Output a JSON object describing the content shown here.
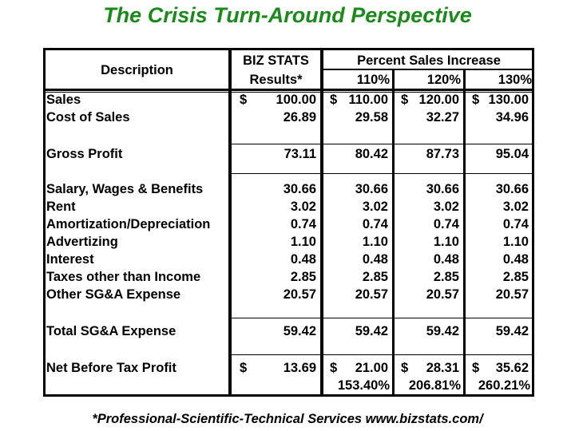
{
  "title": "The Crisis Turn-Around Perspective",
  "header": {
    "description": "Description",
    "bizstats_line1": "BIZ STATS",
    "bizstats_line2": "Results*",
    "percent_group": "Percent Sales Increase",
    "pct": [
      "110%",
      "120%",
      "130%"
    ]
  },
  "rows": [
    {
      "label": "Sales",
      "dollar": true,
      "values": [
        "100.00",
        "110.00",
        "120.00",
        "130.00"
      ]
    },
    {
      "label": "Cost of Sales",
      "dollar": false,
      "values": [
        "26.89",
        "29.58",
        "32.27",
        "34.96"
      ]
    },
    {
      "label": "Gross Profit",
      "dollar": false,
      "values": [
        "73.11",
        "80.42",
        "87.73",
        "95.04"
      ]
    },
    {
      "label": "Salary, Wages & Benefits",
      "dollar": false,
      "values": [
        "30.66",
        "30.66",
        "30.66",
        "30.66"
      ]
    },
    {
      "label": "Rent",
      "dollar": false,
      "values": [
        "3.02",
        "3.02",
        "3.02",
        "3.02"
      ]
    },
    {
      "label": "Amortization/Depreciation",
      "dollar": false,
      "values": [
        "0.74",
        "0.74",
        "0.74",
        "0.74"
      ]
    },
    {
      "label": "Advertizing",
      "dollar": false,
      "values": [
        "1.10",
        "1.10",
        "1.10",
        "1.10"
      ]
    },
    {
      "label": "Interest",
      "dollar": false,
      "values": [
        "0.48",
        "0.48",
        "0.48",
        "0.48"
      ]
    },
    {
      "label": "Taxes other than Income",
      "dollar": false,
      "values": [
        "2.85",
        "2.85",
        "2.85",
        "2.85"
      ]
    },
    {
      "label": "Other SG&A Expense",
      "dollar": false,
      "values": [
        "20.57",
        "20.57",
        "20.57",
        "20.57"
      ]
    },
    {
      "label": "Total SG&A Expense",
      "dollar": false,
      "values": [
        "59.42",
        "59.42",
        "59.42",
        "59.42"
      ]
    },
    {
      "label": "Net Before Tax Profit",
      "dollar": true,
      "values": [
        "13.69",
        "21.00",
        "28.31",
        "35.62"
      ]
    }
  ],
  "currency": "$",
  "net_percent": [
    "153.40%",
    "206.81%",
    "260.21%"
  ],
  "footer": "*Professional-Scientific-Technical Services  www.bizstats.com/"
}
